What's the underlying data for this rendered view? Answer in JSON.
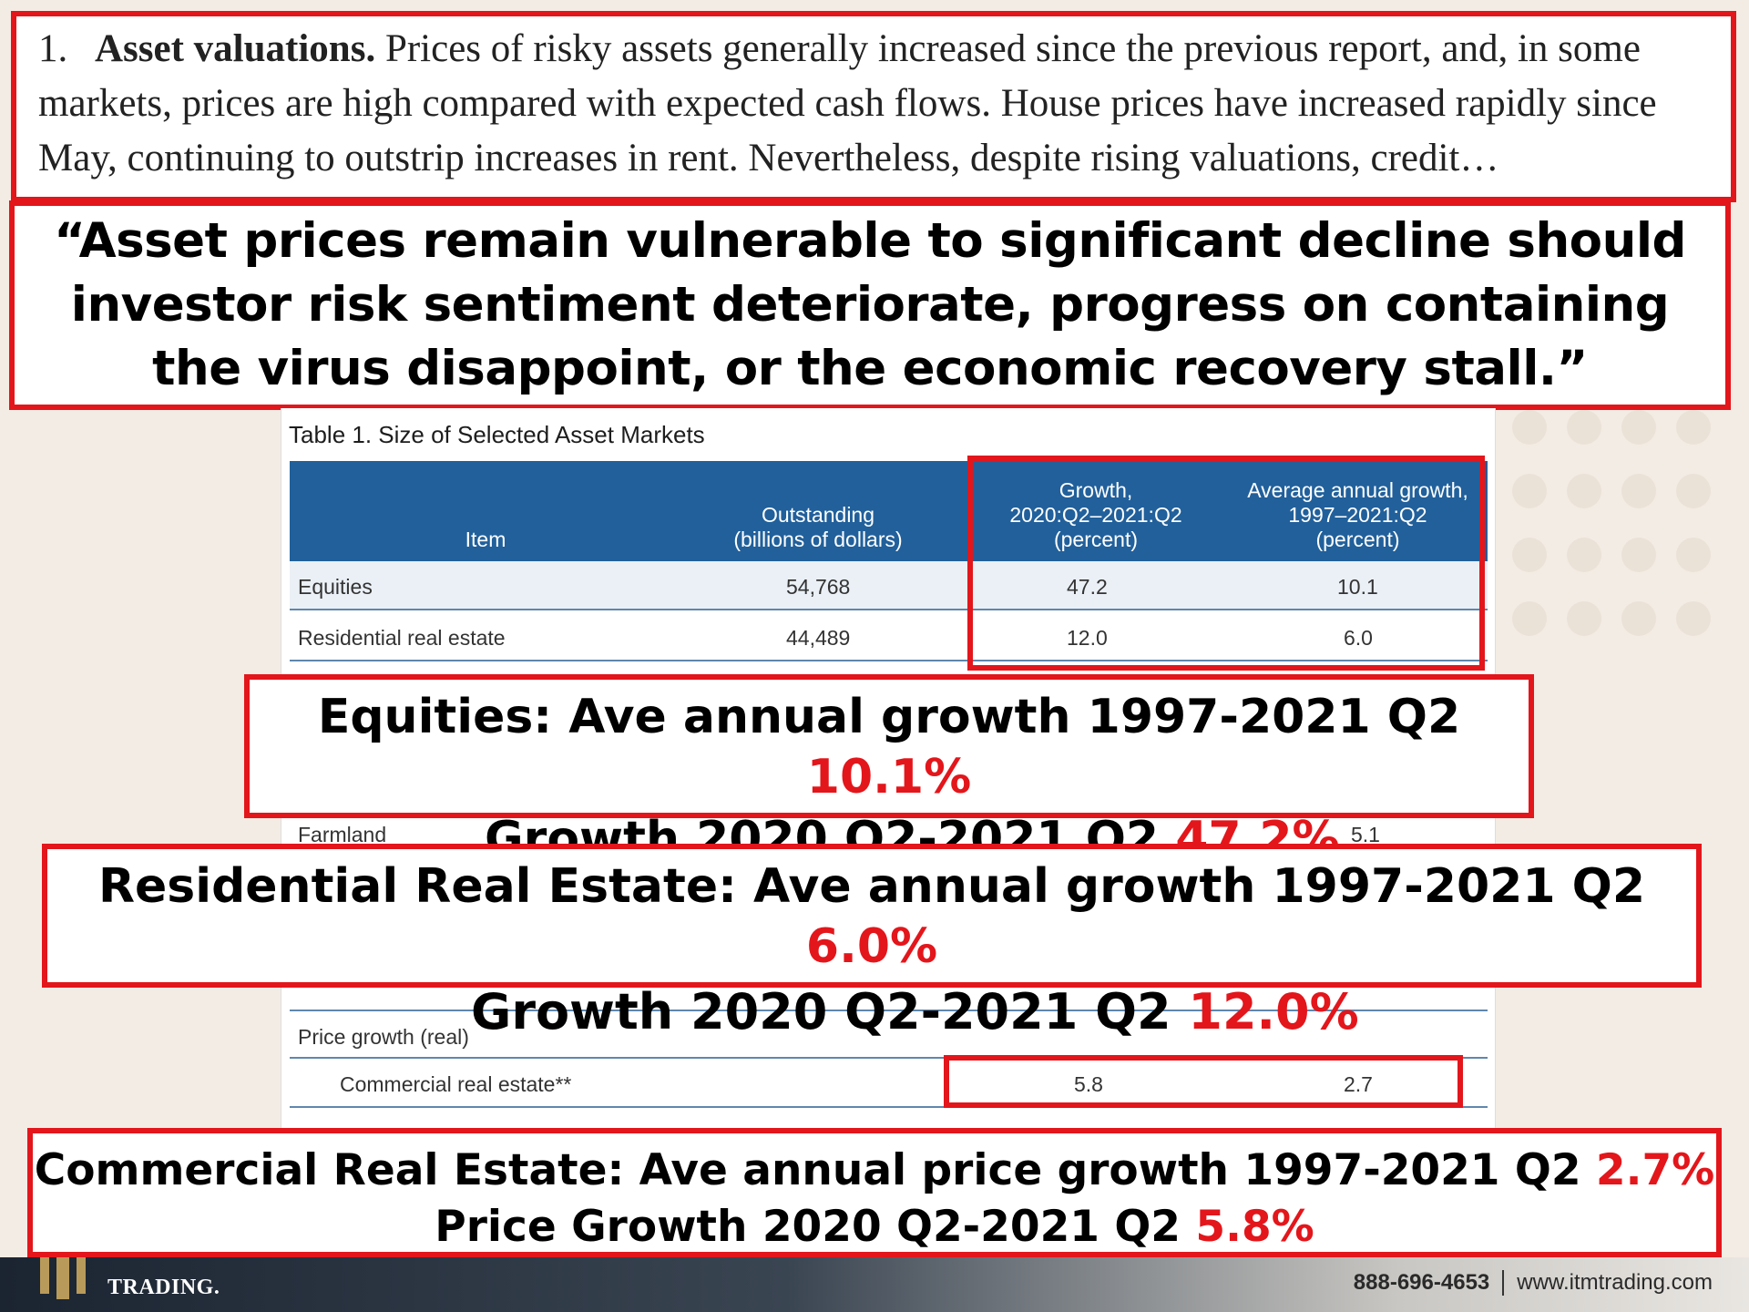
{
  "document_excerpt": {
    "number": "1.",
    "heading": "Asset valuations.",
    "text": "Prices of risky assets generally increased since the previous report, and, in some markets, prices are high compared with expected cash flows. House prices have increased rapidly since May, continuing to outstrip increases in rent. Nevertheless, despite rising valuations, credit…"
  },
  "quote": "“Asset prices remain vulnerable to significant decline should investor risk sentiment deteriorate, progress on containing the virus disappoint, or the economic recovery stall.”",
  "table": {
    "title": "Table 1. Size of Selected Asset Markets",
    "headers": {
      "item": "Item",
      "outstanding": "Outstanding\n(billions of dollars)",
      "growth": "Growth,\n2020:Q2–2021:Q2\n(percent)",
      "avg_growth": "Average annual growth,\n1997–2021:Q2\n(percent)"
    },
    "rows": [
      {
        "item": "Equities",
        "outstanding": "54,768",
        "growth": "47.2",
        "avg_growth": "10.1"
      },
      {
        "item": "Residential real estate",
        "outstanding": "44,489",
        "growth": "12.0",
        "avg_growth": "6.0"
      },
      {
        "item": "Farmland",
        "outstanding": "",
        "growth": "",
        "avg_growth": "5.1"
      }
    ],
    "price_growth_label": "Price growth (real)",
    "price_rows": [
      {
        "item": "Commercial real estate**",
        "growth": "5.8",
        "avg_growth": "2.7"
      }
    ]
  },
  "callouts": {
    "equities": {
      "line1": "Equities: Ave annual growth 1997-2021 Q2",
      "value1": "10.1%",
      "line2": "Growth 2020 Q2-2021 Q2",
      "value2": "47.2%"
    },
    "residential": {
      "line1": "Residential Real Estate: Ave annual growth 1997-2021 Q2",
      "value1": "6.0%",
      "line2": "Growth 2020 Q2-2021 Q2",
      "value2": "12.0%"
    },
    "commercial": {
      "line1": "Commercial Real Estate: Ave annual price growth 1997-2021 Q2",
      "value1": "2.7%",
      "line2": "Price Growth 2020 Q2-2021 Q2",
      "value2": "5.8%"
    }
  },
  "footer": {
    "logo_text": "TRADING.",
    "phone": "888-696-4653",
    "website": "www.itmtrading.com"
  },
  "colors": {
    "accent": "#e3161b",
    "table_header": "#21609b"
  }
}
